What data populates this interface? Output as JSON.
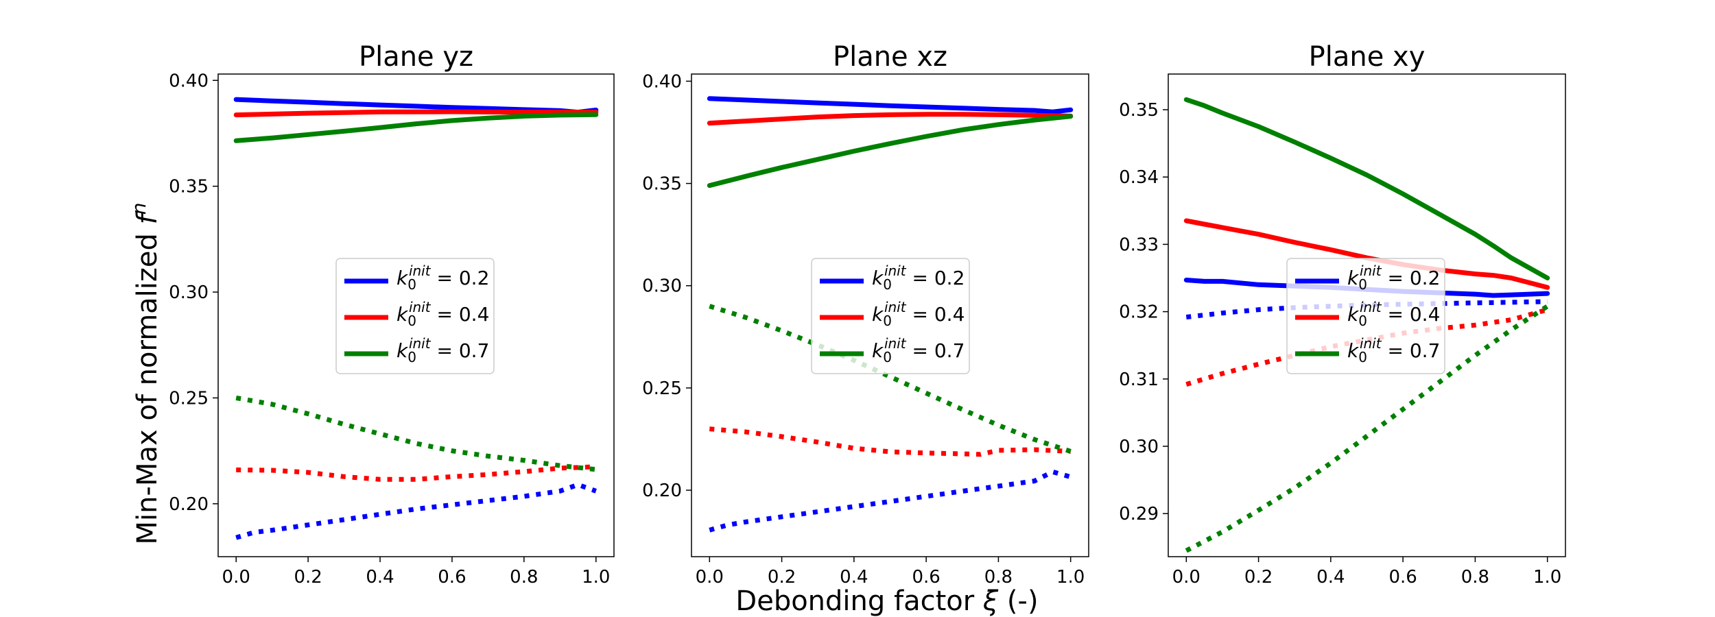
{
  "figure": {
    "ylabel_main": "Min-Max of normalized ",
    "ylabel_symbol": "f",
    "ylabel_sup": "n",
    "xlabel_main": "Debonding factor ",
    "xlabel_symbol": "ξ",
    "xlabel_unit": " (-)"
  },
  "legend_entries": [
    {
      "k_sym": "k",
      "sub": "0",
      "sup": "init",
      "eq": " = 0.2",
      "color": "#0000ff"
    },
    {
      "k_sym": "k",
      "sub": "0",
      "sup": "init",
      "eq": " = 0.4",
      "color": "#ff0000"
    },
    {
      "k_sym": "k",
      "sub": "0",
      "sup": "init",
      "eq": " = 0.7",
      "color": "#008000"
    }
  ],
  "chart_data": [
    {
      "type": "line",
      "title": "Plane yz",
      "xlabel": "",
      "ylabel": "Min-Max of normalized f^n",
      "xlim": [
        -0.05,
        1.05
      ],
      "ylim": [
        0.175,
        0.403
      ],
      "xticks": [
        0.0,
        0.2,
        0.4,
        0.6,
        0.8,
        1.0
      ],
      "xtick_labels": [
        "0.0",
        "0.2",
        "0.4",
        "0.6",
        "0.8",
        "1.0"
      ],
      "yticks": [
        0.2,
        0.25,
        0.3,
        0.35,
        0.4
      ],
      "ytick_labels": [
        "0.20",
        "0.25",
        "0.30",
        "0.35",
        "0.40"
      ],
      "legend": "center",
      "series": [
        {
          "name": "max k0init=0.2",
          "color": "#0000ff",
          "style": "solid",
          "x": [
            0,
            0.1,
            0.2,
            0.3,
            0.4,
            0.5,
            0.6,
            0.7,
            0.8,
            0.9,
            0.95,
            1.0
          ],
          "y": [
            0.391,
            0.3903,
            0.3897,
            0.389,
            0.3884,
            0.3878,
            0.3872,
            0.3867,
            0.3862,
            0.3857,
            0.385,
            0.386
          ]
        },
        {
          "name": "max k0init=0.4",
          "color": "#ff0000",
          "style": "solid",
          "x": [
            0,
            0.2,
            0.4,
            0.6,
            0.8,
            1.0
          ],
          "y": [
            0.3837,
            0.3845,
            0.3851,
            0.3852,
            0.385,
            0.385
          ]
        },
        {
          "name": "max k0init=0.7",
          "color": "#008000",
          "style": "solid",
          "x": [
            0,
            0.1,
            0.2,
            0.3,
            0.4,
            0.5,
            0.6,
            0.7,
            0.8,
            0.9,
            1.0
          ],
          "y": [
            0.3715,
            0.3728,
            0.3744,
            0.376,
            0.3777,
            0.3795,
            0.381,
            0.3822,
            0.3831,
            0.3836,
            0.3838
          ]
        },
        {
          "name": "min k0init=0.2",
          "color": "#0000ff",
          "style": "dotted",
          "x": [
            0,
            0.05,
            0.1,
            0.2,
            0.3,
            0.4,
            0.5,
            0.6,
            0.7,
            0.8,
            0.9,
            0.95,
            1.0
          ],
          "y": [
            0.184,
            0.1865,
            0.1875,
            0.19,
            0.1925,
            0.195,
            0.1975,
            0.1995,
            0.2015,
            0.2035,
            0.206,
            0.209,
            0.206
          ]
        },
        {
          "name": "min k0init=0.4",
          "color": "#ff0000",
          "style": "dotted",
          "x": [
            0,
            0.1,
            0.2,
            0.3,
            0.4,
            0.5,
            0.6,
            0.7,
            0.8,
            0.9,
            1.0
          ],
          "y": [
            0.216,
            0.2158,
            0.2148,
            0.2128,
            0.2115,
            0.2115,
            0.2128,
            0.2138,
            0.2152,
            0.2168,
            0.2175
          ]
        },
        {
          "name": "min k0init=0.7",
          "color": "#008000",
          "style": "dotted",
          "x": [
            0,
            0.1,
            0.2,
            0.3,
            0.4,
            0.5,
            0.6,
            0.7,
            0.8,
            0.9,
            1.0
          ],
          "y": [
            0.25,
            0.247,
            0.2425,
            0.2375,
            0.233,
            0.2285,
            0.225,
            0.2225,
            0.2205,
            0.218,
            0.2162
          ]
        }
      ]
    },
    {
      "type": "line",
      "title": "Plane xz",
      "xlabel": "Debonding factor ξ (-)",
      "ylabel": "",
      "xlim": [
        -0.05,
        1.05
      ],
      "ylim": [
        0.1675,
        0.4035
      ],
      "xticks": [
        0.0,
        0.2,
        0.4,
        0.6,
        0.8,
        1.0
      ],
      "xtick_labels": [
        "0.0",
        "0.2",
        "0.4",
        "0.6",
        "0.8",
        "1.0"
      ],
      "yticks": [
        0.2,
        0.25,
        0.3,
        0.35,
        0.4
      ],
      "ytick_labels": [
        "0.20",
        "0.25",
        "0.30",
        "0.35",
        "0.40"
      ],
      "legend": "center",
      "series": [
        {
          "name": "max k0init=0.2",
          "color": "#0000ff",
          "style": "solid",
          "x": [
            0,
            0.1,
            0.2,
            0.3,
            0.4,
            0.5,
            0.6,
            0.7,
            0.8,
            0.9,
            0.95,
            1.0
          ],
          "y": [
            0.3915,
            0.3908,
            0.3901,
            0.3894,
            0.3887,
            0.388,
            0.3874,
            0.3868,
            0.3862,
            0.3857,
            0.385,
            0.386
          ]
        },
        {
          "name": "max k0init=0.4",
          "color": "#ff0000",
          "style": "solid",
          "x": [
            0,
            0.1,
            0.2,
            0.3,
            0.4,
            0.5,
            0.6,
            0.7,
            0.8,
            0.9,
            1.0
          ],
          "y": [
            0.3795,
            0.3805,
            0.3815,
            0.3825,
            0.3832,
            0.3836,
            0.3838,
            0.3838,
            0.3836,
            0.3833,
            0.383
          ]
        },
        {
          "name": "max k0init=0.7",
          "color": "#008000",
          "style": "solid",
          "x": [
            0,
            0.1,
            0.2,
            0.3,
            0.4,
            0.5,
            0.6,
            0.7,
            0.8,
            0.9,
            1.0
          ],
          "y": [
            0.349,
            0.3535,
            0.3578,
            0.3618,
            0.3658,
            0.3695,
            0.373,
            0.3762,
            0.3788,
            0.381,
            0.3828
          ]
        },
        {
          "name": "min k0init=0.2",
          "color": "#0000ff",
          "style": "dotted",
          "x": [
            0,
            0.05,
            0.1,
            0.2,
            0.3,
            0.4,
            0.5,
            0.6,
            0.7,
            0.8,
            0.9,
            0.95,
            1.0
          ],
          "y": [
            0.1805,
            0.183,
            0.1845,
            0.187,
            0.1895,
            0.192,
            0.1945,
            0.197,
            0.1995,
            0.202,
            0.2045,
            0.209,
            0.2065
          ]
        },
        {
          "name": "min k0init=0.4",
          "color": "#ff0000",
          "style": "dotted",
          "x": [
            0,
            0.1,
            0.2,
            0.3,
            0.4,
            0.5,
            0.6,
            0.7,
            0.75,
            0.8,
            0.9,
            1.0
          ],
          "y": [
            0.23,
            0.2285,
            0.2262,
            0.2235,
            0.2205,
            0.2188,
            0.2182,
            0.2178,
            0.2175,
            0.2195,
            0.2198,
            0.219
          ]
        },
        {
          "name": "min k0init=0.7",
          "color": "#008000",
          "style": "dotted",
          "x": [
            0,
            0.1,
            0.2,
            0.3,
            0.4,
            0.5,
            0.6,
            0.7,
            0.8,
            0.9,
            1.0
          ],
          "y": [
            0.29,
            0.2845,
            0.278,
            0.271,
            0.2635,
            0.2555,
            0.2475,
            0.2395,
            0.2318,
            0.2248,
            0.219
          ]
        }
      ]
    },
    {
      "type": "line",
      "title": "Plane xy",
      "xlabel": "",
      "ylabel": "",
      "xlim": [
        -0.05,
        1.05
      ],
      "ylim": [
        0.2836,
        0.3553
      ],
      "xticks": [
        0.0,
        0.2,
        0.4,
        0.6,
        0.8,
        1.0
      ],
      "xtick_labels": [
        "0.0",
        "0.2",
        "0.4",
        "0.6",
        "0.8",
        "1.0"
      ],
      "yticks": [
        0.29,
        0.3,
        0.31,
        0.32,
        0.33,
        0.34,
        0.35
      ],
      "ytick_labels": [
        "0.29",
        "0.30",
        "0.31",
        "0.32",
        "0.33",
        "0.34",
        "0.35"
      ],
      "legend": "center-right",
      "series": [
        {
          "name": "max k0init=0.2",
          "color": "#0000ff",
          "style": "solid",
          "x": [
            0,
            0.05,
            0.1,
            0.2,
            0.3,
            0.4,
            0.5,
            0.6,
            0.7,
            0.8,
            0.85,
            0.9,
            0.95,
            1.0
          ],
          "y": [
            0.3247,
            0.3245,
            0.3245,
            0.324,
            0.3238,
            0.3236,
            0.3233,
            0.323,
            0.3228,
            0.3226,
            0.3224,
            0.3225,
            0.3226,
            0.3227
          ]
        },
        {
          "name": "max k0init=0.4",
          "color": "#ff0000",
          "style": "solid",
          "x": [
            0,
            0.05,
            0.1,
            0.2,
            0.3,
            0.4,
            0.5,
            0.6,
            0.7,
            0.8,
            0.85,
            0.9,
            0.95,
            1.0
          ],
          "y": [
            0.3335,
            0.333,
            0.3325,
            0.3315,
            0.3303,
            0.3292,
            0.328,
            0.327,
            0.3262,
            0.3256,
            0.3254,
            0.325,
            0.3243,
            0.3236
          ]
        },
        {
          "name": "max k0init=0.7",
          "color": "#008000",
          "style": "solid",
          "x": [
            0,
            0.05,
            0.1,
            0.2,
            0.3,
            0.4,
            0.5,
            0.6,
            0.7,
            0.8,
            0.85,
            0.9,
            0.95,
            1.0
          ],
          "y": [
            0.3515,
            0.3506,
            0.3495,
            0.3475,
            0.3452,
            0.3428,
            0.3403,
            0.3375,
            0.3345,
            0.3315,
            0.3298,
            0.328,
            0.3265,
            0.325
          ]
        },
        {
          "name": "min k0init=0.2",
          "color": "#0000ff",
          "style": "dotted",
          "x": [
            0,
            0.1,
            0.2,
            0.3,
            0.4,
            0.5,
            0.6,
            0.7,
            0.8,
            0.9,
            1.0
          ],
          "y": [
            0.3192,
            0.3198,
            0.3203,
            0.3206,
            0.3208,
            0.321,
            0.3211,
            0.3212,
            0.3213,
            0.3214,
            0.3215
          ]
        },
        {
          "name": "min k0init=0.4",
          "color": "#ff0000",
          "style": "dotted",
          "x": [
            0,
            0.1,
            0.2,
            0.3,
            0.4,
            0.5,
            0.6,
            0.7,
            0.8,
            0.9,
            1.0
          ],
          "y": [
            0.3092,
            0.3108,
            0.3122,
            0.3135,
            0.3148,
            0.3158,
            0.3168,
            0.3175,
            0.318,
            0.3188,
            0.3203
          ]
        },
        {
          "name": "min k0init=0.7",
          "color": "#008000",
          "style": "dotted",
          "x": [
            0,
            0.1,
            0.2,
            0.3,
            0.4,
            0.5,
            0.6,
            0.7,
            0.8,
            0.9,
            1.0
          ],
          "y": [
            0.2845,
            0.2873,
            0.2905,
            0.2938,
            0.2975,
            0.3015,
            0.3055,
            0.3095,
            0.3135,
            0.3173,
            0.3208
          ]
        }
      ]
    }
  ]
}
